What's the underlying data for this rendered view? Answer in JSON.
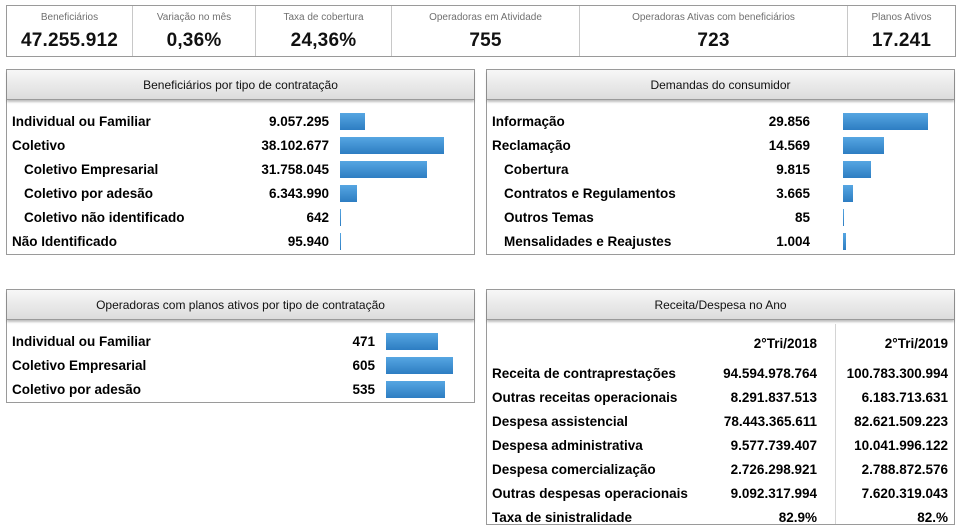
{
  "kpis": [
    {
      "label": "Beneficiários",
      "value": "47.255.912"
    },
    {
      "label": "Variação no mês",
      "value": "0,36%"
    },
    {
      "label": "Taxa de cobertura",
      "value": "24,36%"
    },
    {
      "label": "Operadoras em Atividade",
      "value": "755"
    },
    {
      "label": "Operadoras Ativas com beneficiários",
      "value": "723"
    },
    {
      "label": "Planos Ativos",
      "value": "17.241"
    }
  ],
  "beneficiarios": {
    "title": "Beneficiários por tipo de contratação",
    "rows": [
      {
        "label": "Individual ou Familiar",
        "value": "9.057.295",
        "num": 9057295,
        "indent": false
      },
      {
        "label": "Coletivo",
        "value": "38.102.677",
        "num": 38102677,
        "indent": false
      },
      {
        "label": "Coletivo Empresarial",
        "value": "31.758.045",
        "num": 31758045,
        "indent": true
      },
      {
        "label": "Coletivo por adesão",
        "value": "6.343.990",
        "num": 6343990,
        "indent": true
      },
      {
        "label": "Coletivo não identificado",
        "value": "642",
        "num": 642,
        "indent": true
      },
      {
        "label": "Não Identificado",
        "value": "95.940",
        "num": 95940,
        "indent": false
      }
    ]
  },
  "demandas": {
    "title": "Demandas do consumidor",
    "rows": [
      {
        "label": "Informação",
        "value": "29.856",
        "num": 29856,
        "indent": false
      },
      {
        "label": "Reclamação",
        "value": "14.569",
        "num": 14569,
        "indent": false
      },
      {
        "label": "Cobertura",
        "value": "9.815",
        "num": 9815,
        "indent": true
      },
      {
        "label": "Contratos e Regulamentos",
        "value": "3.665",
        "num": 3665,
        "indent": true
      },
      {
        "label": "Outros Temas",
        "value": "85",
        "num": 85,
        "indent": true
      },
      {
        "label": "Mensalidades e Reajustes",
        "value": "1.004",
        "num": 1004,
        "indent": true
      }
    ]
  },
  "operadoras": {
    "title": "Operadoras com planos ativos por tipo de contratação",
    "rows": [
      {
        "label": "Individual ou Familiar",
        "value": "471",
        "num": 471,
        "indent": false
      },
      {
        "label": "Coletivo Empresarial",
        "value": "605",
        "num": 605,
        "indent": false
      },
      {
        "label": "Coletivo por adesão",
        "value": "535",
        "num": 535,
        "indent": false
      }
    ]
  },
  "receita": {
    "title": "Receita/Despesa no Ano",
    "columns": [
      "2°Tri/2018",
      "2°Tri/2019"
    ],
    "rows": [
      {
        "label": "Receita de contraprestações",
        "v1": "94.594.978.764",
        "v2": "100.783.300.994"
      },
      {
        "label": "Outras receitas operacionais",
        "v1": "8.291.837.513",
        "v2": "6.183.713.631"
      },
      {
        "label": "Despesa assistencial",
        "v1": "78.443.365.611",
        "v2": "82.621.509.223"
      },
      {
        "label": "Despesa administrativa",
        "v1": "9.577.739.407",
        "v2": "10.041.996.122"
      },
      {
        "label": "Despesa comercialização",
        "v1": "2.726.298.921",
        "v2": "2.788.872.576"
      },
      {
        "label": "Outras despesas operacionais",
        "v1": "9.092.317.994",
        "v2": "7.620.319.043"
      },
      {
        "label": "Taxa de sinistralidade",
        "v1": "82.9%",
        "v2": "82.%"
      }
    ]
  },
  "colors": {
    "bar": "#3a8fd3",
    "border": "#9a9a9a",
    "header_bg": "#e6e6e6"
  }
}
